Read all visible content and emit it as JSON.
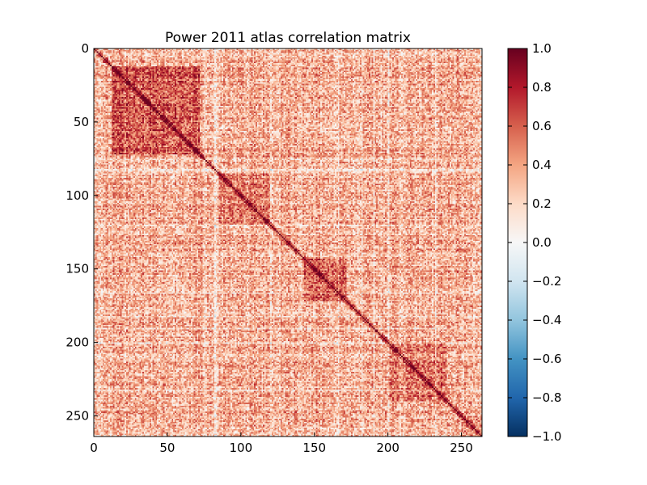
{
  "chart_data": {
    "type": "heatmap",
    "title": "Power 2011 atlas correlation matrix",
    "xlabel": "",
    "ylabel": "",
    "n_regions": 264,
    "xlim": [
      0,
      264
    ],
    "ylim": [
      264,
      0
    ],
    "x_ticks": [
      0,
      50,
      100,
      150,
      200,
      250
    ],
    "y_ticks": [
      0,
      50,
      100,
      150,
      200,
      250
    ],
    "colormap": "RdBu_r",
    "value_range": [
      -1.0,
      1.0
    ],
    "colorbar_ticks": [
      "1.0",
      "0.8",
      "0.6",
      "0.4",
      "0.2",
      "0.0",
      "−0.2",
      "−0.4",
      "−0.6",
      "−0.8",
      "−1.0"
    ],
    "diagonal_value": 1.0,
    "baseline_correlation": 0.35,
    "module_blocks": [
      {
        "start": 12,
        "end": 72,
        "mean_r": 0.62
      },
      {
        "start": 85,
        "end": 120,
        "mean_r": 0.5
      },
      {
        "start": 143,
        "end": 172,
        "mean_r": 0.6
      },
      {
        "start": 200,
        "end": 240,
        "mean_r": 0.52
      },
      {
        "start": 250,
        "end": 264,
        "mean_r": 0.5
      }
    ],
    "low_correlation_rows": [
      75,
      82,
      83,
      120,
      166,
      182,
      190,
      200,
      232
    ],
    "colors": {
      "neg_max": "#053061",
      "neg_mid": "#4393c3",
      "zero": "#f7f7f7",
      "pos_mid": "#f4a582",
      "pos_max": "#67001f"
    }
  }
}
